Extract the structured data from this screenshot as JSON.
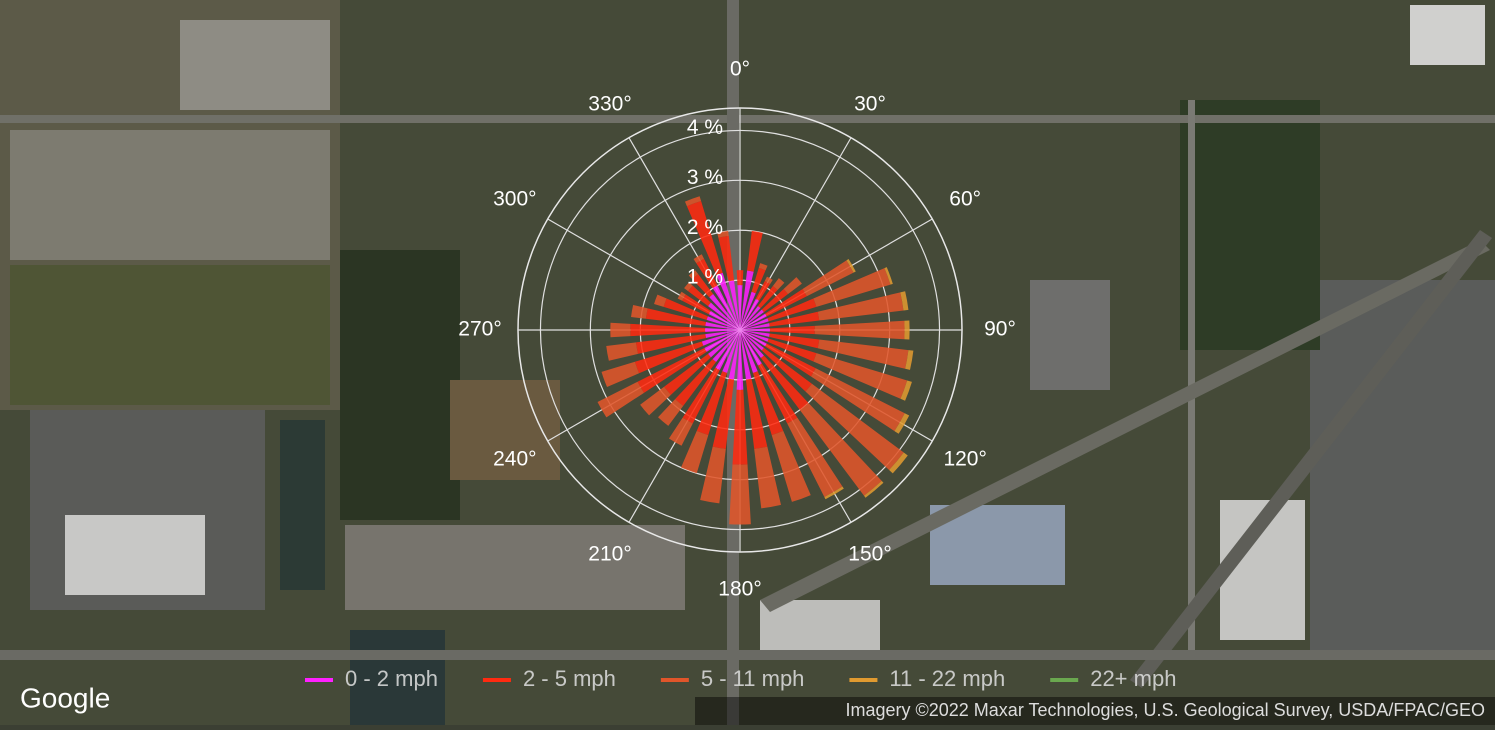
{
  "chart_data": {
    "type": "windrose",
    "x": [
      0,
      10,
      20,
      30,
      40,
      50,
      60,
      70,
      80,
      90,
      100,
      110,
      120,
      130,
      140,
      150,
      160,
      170,
      180,
      190,
      200,
      210,
      220,
      230,
      240,
      250,
      260,
      270,
      280,
      290,
      300,
      310,
      320,
      330,
      340,
      350
    ],
    "series": [
      {
        "name": "0 - 2 mph",
        "color": "#ff20ff",
        "values": [
          0.9,
          1.2,
          0.8,
          0.7,
          0.6,
          0.6,
          0.6,
          0.6,
          0.6,
          0.6,
          0.6,
          0.6,
          0.6,
          0.6,
          0.7,
          0.8,
          0.9,
          1.0,
          1.2,
          1.0,
          0.9,
          0.9,
          0.8,
          0.8,
          0.8,
          0.8,
          0.7,
          0.7,
          0.7,
          0.7,
          0.7,
          0.8,
          0.9,
          1.0,
          1.2,
          1.0
        ]
      },
      {
        "name": "2 - 5 mph",
        "color": "#ff2a10",
        "values": [
          0.3,
          0.8,
          0.5,
          0.4,
          0.5,
          0.6,
          0.9,
          1.0,
          1.0,
          0.9,
          1.0,
          1.0,
          1.1,
          1.2,
          1.3,
          1.3,
          1.3,
          1.4,
          1.5,
          1.4,
          1.3,
          1.2,
          1.1,
          1.1,
          1.5,
          1.4,
          1.4,
          1.5,
          1.2,
          0.9,
          0.6,
          0.5,
          0.5,
          0.6,
          1.5,
          0.9
        ]
      },
      {
        "name": "5 - 11 mph",
        "color": "#e0552a",
        "values": [
          0,
          0,
          0.1,
          0.1,
          0.2,
          0.35,
          1.05,
          1.55,
          1.7,
          1.8,
          1.8,
          1.9,
          2.0,
          2.3,
          2.15,
          1.65,
          1.4,
          1.2,
          1.2,
          1.1,
          0.8,
          0.5,
          0.5,
          0.6,
          0.9,
          0.7,
          0.6,
          0.4,
          0.3,
          0.2,
          0.1,
          0.1,
          0.1,
          0.1,
          0.1,
          0.1
        ]
      },
      {
        "name": "11 - 22 mph",
        "color": "#e09a30",
        "values": [
          0,
          0,
          0,
          0,
          0,
          0,
          0.05,
          0.05,
          0.1,
          0.1,
          0.1,
          0.1,
          0.1,
          0.1,
          0.05,
          0.05,
          0,
          0,
          0,
          0,
          0,
          0,
          0,
          0,
          0,
          0,
          0,
          0,
          0,
          0,
          0,
          0,
          0,
          0,
          0,
          0
        ]
      },
      {
        "name": "22+ mph",
        "color": "#6aa84f",
        "values": [
          0,
          0,
          0,
          0,
          0,
          0,
          0,
          0,
          0,
          0,
          0,
          0,
          0,
          0,
          0,
          0,
          0,
          0,
          0,
          0,
          0,
          0,
          0,
          0,
          0,
          0,
          0,
          0,
          0,
          0,
          0,
          0,
          0,
          0,
          0,
          0
        ]
      }
    ],
    "rlim": [
      0,
      4.45
    ],
    "rticks": [
      {
        "value": 1,
        "label": "1 %"
      },
      {
        "value": 2,
        "label": "2 %"
      },
      {
        "value": 3,
        "label": "3 %"
      },
      {
        "value": 4,
        "label": "4 %"
      }
    ],
    "angular_ticks": [
      {
        "value": 0,
        "label": "0°"
      },
      {
        "value": 30,
        "label": "30°"
      },
      {
        "value": 60,
        "label": "60°"
      },
      {
        "value": 90,
        "label": "90°"
      },
      {
        "value": 120,
        "label": "120°"
      },
      {
        "value": 150,
        "label": "150°"
      },
      {
        "value": 180,
        "label": "180°"
      },
      {
        "value": 210,
        "label": "210°"
      },
      {
        "value": 240,
        "label": "240°"
      },
      {
        "value": 270,
        "label": "270°"
      },
      {
        "value": 300,
        "label": "300°"
      },
      {
        "value": 330,
        "label": "330°"
      }
    ],
    "direction": "clockwise",
    "grid": true,
    "legend": "bottom"
  },
  "map": {
    "logo": "Google",
    "attribution": "Imagery ©2022 Maxar Technologies, U.S. Geological Survey, USDA/FPAC/GEO"
  }
}
